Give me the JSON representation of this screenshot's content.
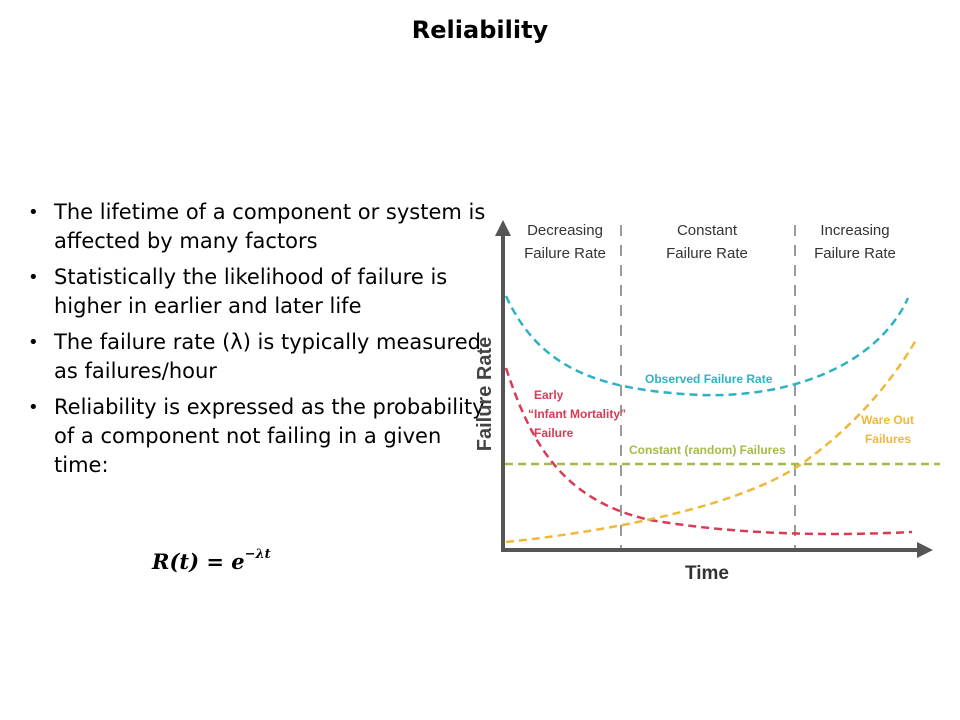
{
  "title": "Reliability",
  "bullets": [
    "The lifetime of a component or system is affected by many factors",
    "Statistically the likelihood of failure is higher in earlier and later life",
    "The failure rate (λ) is typically measured as failures/hour",
    "Reliability is expressed as the probability of a component not failing in a given time:"
  ],
  "formula": {
    "lhs": "R(t) = ",
    "base": "e",
    "exponent": "−λt"
  },
  "diagram": {
    "regions": [
      {
        "line1": "Decreasing",
        "line2": "Failure Rate"
      },
      {
        "line1": "Constant",
        "line2": "Failure Rate"
      },
      {
        "line1": "Increasing",
        "line2": "Failure Rate"
      }
    ],
    "y_axis_label": "Failure Rate",
    "x_axis_label": "Time",
    "curve_labels": {
      "observed": "Observed Failure Rate",
      "early_1": "Early",
      "early_2": "“Infant Mortality”",
      "early_3": "Failure",
      "constant": "Constant (random) Failures",
      "wearout_1": "Ware Out",
      "wearout_2": "Failures"
    },
    "colors": {
      "observed": "#2bb3c4",
      "early": "#d93a55",
      "constant": "#a8b84a",
      "wearout": "#f0b83a",
      "axis": "#555555",
      "divider": "#999999"
    }
  }
}
